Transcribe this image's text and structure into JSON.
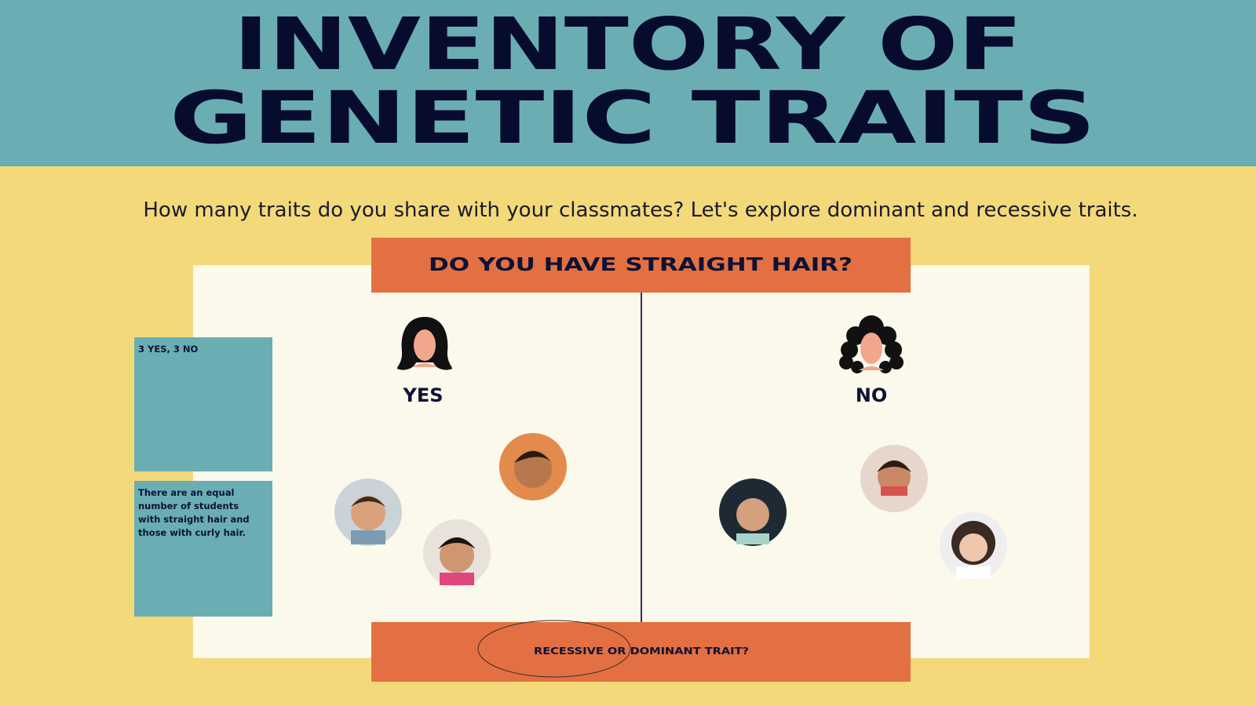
{
  "header": {
    "title_lines": [
      "INVENTORY OF",
      "GENETIC TRAITS"
    ]
  },
  "subtitle": "How many traits do you share with your classmates? Let's explore dominant and recessive traits.",
  "question": "DO YOU HAVE STRAIGHT HAIR?",
  "options": [
    {
      "label": "YES"
    },
    {
      "label": "NO"
    }
  ],
  "notes": [
    "3 YES, 3 NO",
    "There are an equal number of students with straight hair and those with curly hair."
  ],
  "footer": "RECESSIVE OR DOMINANT TRAIT?"
}
